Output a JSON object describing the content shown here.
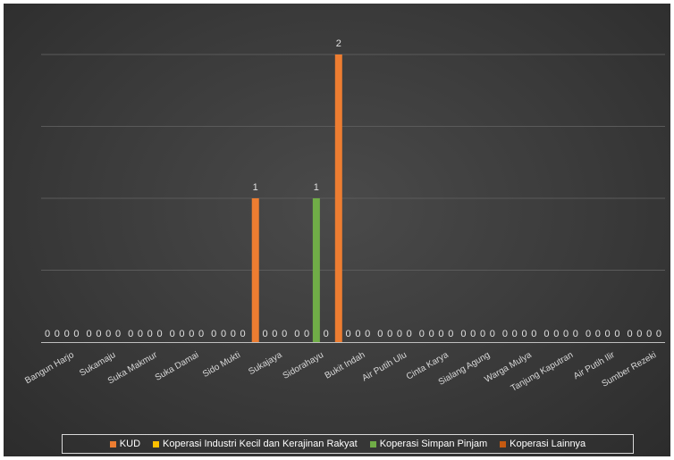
{
  "chart_data": {
    "type": "bar",
    "title": "",
    "xlabel": "",
    "ylabel": "",
    "ylim": [
      0,
      2
    ],
    "gridlines": [
      0,
      0.5,
      1,
      1.5,
      2
    ],
    "grid": true,
    "legend_position": "bottom",
    "categories": [
      "Bangun Harjo",
      "Sukamaju",
      "Suka Makmur",
      "Suka Damai",
      "Sido Mukti",
      "Sukajaya",
      "Sidorahayu",
      "Bukit Indah",
      "Air Putih Ulu",
      "Cinta Karya",
      "Sialang Agung",
      "Warga Mulya",
      "Tanjung Kaputran",
      "Air Putih Ilir",
      "Sumber Rezeki"
    ],
    "series": [
      {
        "name": "KUD",
        "color": "#ED7D31",
        "values": [
          0,
          0,
          0,
          0,
          0,
          1,
          0,
          2,
          0,
          0,
          0,
          0,
          0,
          0,
          0
        ]
      },
      {
        "name": "Koperasi Industri Kecil dan Kerajinan Rakyat",
        "color": "#FFC000",
        "values": [
          0,
          0,
          0,
          0,
          0,
          0,
          0,
          0,
          0,
          0,
          0,
          0,
          0,
          0,
          0
        ]
      },
      {
        "name": "Koperasi Simpan Pinjam",
        "color": "#70AD47",
        "values": [
          0,
          0,
          0,
          0,
          0,
          0,
          1,
          0,
          0,
          0,
          0,
          0,
          0,
          0,
          0
        ]
      },
      {
        "name": "Koperasi Lainnya",
        "color": "#C55A11",
        "values": [
          0,
          0,
          0,
          0,
          0,
          0,
          0,
          0,
          0,
          0,
          0,
          0,
          0,
          0,
          0
        ]
      }
    ]
  }
}
